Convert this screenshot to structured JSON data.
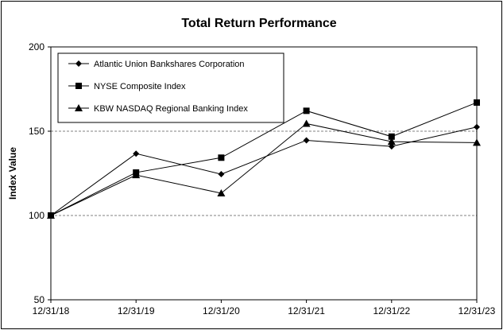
{
  "chart_data": {
    "type": "line",
    "title": "Total Return Performance",
    "xlabel": "",
    "ylabel": "Index Value",
    "categories": [
      "12/31/18",
      "12/31/19",
      "12/31/20",
      "12/31/21",
      "12/31/22",
      "12/31/23"
    ],
    "ylim": [
      50,
      200
    ],
    "yticks": [
      50,
      100,
      150,
      200
    ],
    "gridlines": [
      100,
      150
    ],
    "legend_position": "top-left",
    "series": [
      {
        "name": "Atlantic Union Bankshares Corporation",
        "marker": "diamond",
        "values": [
          100,
          136.7,
          124.5,
          144.6,
          141,
          152.5
        ]
      },
      {
        "name": "NYSE Composite Index",
        "marker": "square",
        "values": [
          100,
          125.5,
          134.3,
          162.1,
          146.8,
          167
        ]
      },
      {
        "name": "KBW NASDAQ Regional Banking Index",
        "marker": "triangle",
        "values": [
          100,
          124,
          113.2,
          154.5,
          143.8,
          143.2
        ]
      }
    ]
  }
}
